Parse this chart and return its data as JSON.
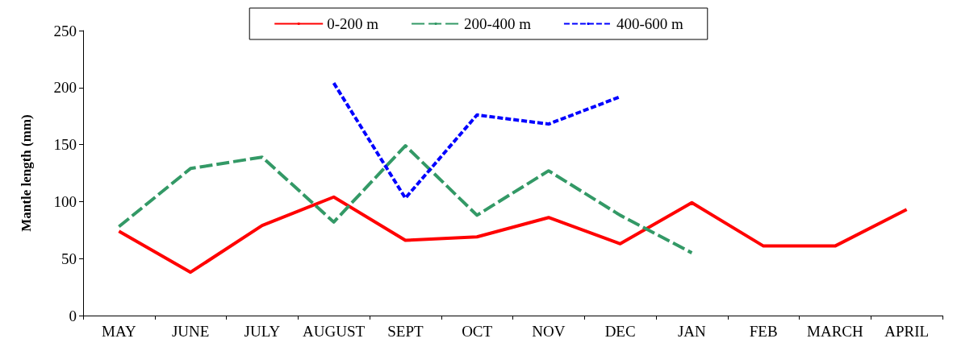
{
  "chart_data": {
    "type": "line",
    "ylabel": "Mantle length (mm)",
    "categories": [
      "MAY",
      "JUNE",
      "JULY",
      "AUGUST",
      "SEPT",
      "OCT",
      "NOV",
      "DEC",
      "JAN",
      "FEB",
      "MARCH",
      "APRIL"
    ],
    "series": [
      {
        "name": "0-200 m",
        "color": "#ff0000",
        "line_style": "solid",
        "values": [
          74,
          38,
          79,
          104,
          66,
          69,
          86,
          63,
          99,
          61,
          61,
          93
        ]
      },
      {
        "name": "200-400 m",
        "color": "#339966",
        "line_style": "dashed",
        "values": [
          78,
          129,
          139,
          82,
          149,
          88,
          127,
          88,
          55,
          null,
          null,
          null
        ]
      },
      {
        "name": "400-600 m",
        "color": "#0000ff",
        "line_style": "dotted",
        "values": [
          null,
          null,
          null,
          204,
          103,
          176,
          168,
          192,
          null,
          null,
          null,
          null
        ]
      }
    ],
    "ylim": [
      0,
      250
    ],
    "yticks": [
      0,
      50,
      100,
      150,
      200,
      250
    ],
    "grid": false,
    "legend": "top",
    "marker": "none"
  }
}
